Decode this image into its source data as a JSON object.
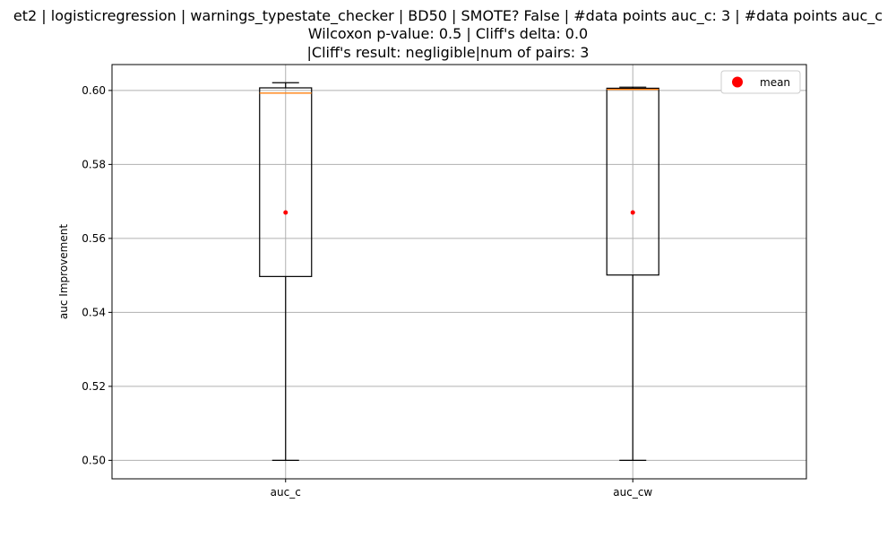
{
  "chart_data": {
    "type": "box",
    "title_lines": [
      "et2 | logisticregression | warnings_typestate_checker | BD50 | SMOTE? False | #data points auc_c: 3 | #data points auc_c",
      "Wilcoxon p-value: 0.5 | Cliff's delta: 0.0",
      "|Cliff's result: negligible|num of pairs: 3"
    ],
    "xlabel": "",
    "ylabel": "auc Improvement",
    "categories": [
      "auc_c",
      "auc_cw"
    ],
    "ylim": [
      0.495,
      0.607
    ],
    "yticks": [
      0.5,
      0.52,
      0.54,
      0.56,
      0.58,
      0.6
    ],
    "ytick_labels": [
      "0.50",
      "0.52",
      "0.54",
      "0.56",
      "0.58",
      "0.60"
    ],
    "grid": true,
    "legend": {
      "placement": "top-right",
      "entries": [
        {
          "label": "mean",
          "color": "#ff0000",
          "marker": "circle"
        }
      ]
    },
    "boxes": [
      {
        "category": "auc_c",
        "whislo": 0.5,
        "q1": 0.5497,
        "med": 0.5993,
        "q3": 0.6007,
        "whishi": 0.6021,
        "mean": 0.567
      },
      {
        "category": "auc_cw",
        "whislo": 0.5,
        "q1": 0.5501,
        "med": 0.6003,
        "q3": 0.6006,
        "whishi": 0.6009,
        "mean": 0.567
      }
    ],
    "colors": {
      "box": "#000000",
      "median": "#ff7f0e",
      "mean": "#ff0000",
      "grid": "#b0b0b0"
    }
  }
}
